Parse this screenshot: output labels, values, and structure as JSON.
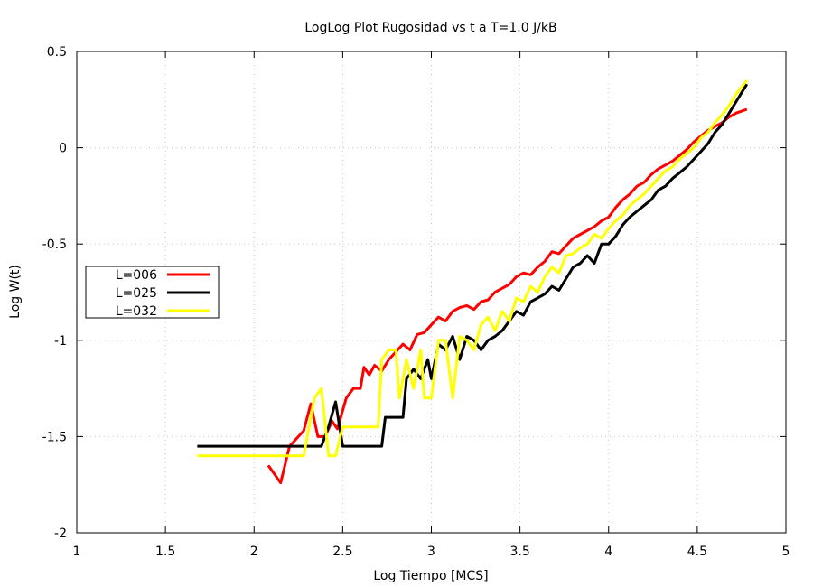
{
  "chart_data": {
    "type": "line",
    "title": "LogLog Plot Rugosidad vs t a T=1.0 J/kB",
    "xlabel": "Log Tiempo [MCS]",
    "ylabel": "Log W(t)",
    "xlim": [
      1,
      5
    ],
    "ylim": [
      -2,
      0.5
    ],
    "x_ticks": [
      1,
      1.5,
      2,
      2.5,
      3,
      3.5,
      4,
      4.5,
      5
    ],
    "x_tick_labels": [
      "1",
      "1.5",
      "2",
      "2.5",
      "3",
      "3.5",
      "4",
      "4.5",
      "5"
    ],
    "y_ticks": [
      -2,
      -1.5,
      -1,
      -0.5,
      0,
      0.5
    ],
    "y_tick_labels": [
      "-2",
      "-1.5",
      "-1",
      "-0.5",
      "0",
      "0.5"
    ],
    "grid": true,
    "legend_position": "middle-left",
    "series": [
      {
        "name": "L=006",
        "color": "#ff0000",
        "points": [
          [
            2.08,
            -1.65
          ],
          [
            2.15,
            -1.74
          ],
          [
            2.2,
            -1.55
          ],
          [
            2.28,
            -1.47
          ],
          [
            2.32,
            -1.33
          ],
          [
            2.36,
            -1.5
          ],
          [
            2.4,
            -1.5
          ],
          [
            2.44,
            -1.42
          ],
          [
            2.47,
            -1.46
          ],
          [
            2.52,
            -1.3
          ],
          [
            2.56,
            -1.25
          ],
          [
            2.6,
            -1.25
          ],
          [
            2.62,
            -1.14
          ],
          [
            2.65,
            -1.18
          ],
          [
            2.68,
            -1.13
          ],
          [
            2.72,
            -1.16
          ],
          [
            2.76,
            -1.1
          ],
          [
            2.8,
            -1.06
          ],
          [
            2.84,
            -1.02
          ],
          [
            2.88,
            -1.05
          ],
          [
            2.92,
            -0.97
          ],
          [
            2.96,
            -0.96
          ],
          [
            3.0,
            -0.92
          ],
          [
            3.04,
            -0.88
          ],
          [
            3.08,
            -0.9
          ],
          [
            3.12,
            -0.85
          ],
          [
            3.16,
            -0.83
          ],
          [
            3.2,
            -0.82
          ],
          [
            3.24,
            -0.84
          ],
          [
            3.28,
            -0.8
          ],
          [
            3.32,
            -0.79
          ],
          [
            3.36,
            -0.75
          ],
          [
            3.4,
            -0.73
          ],
          [
            3.44,
            -0.71
          ],
          [
            3.48,
            -0.67
          ],
          [
            3.52,
            -0.65
          ],
          [
            3.56,
            -0.66
          ],
          [
            3.6,
            -0.62
          ],
          [
            3.64,
            -0.59
          ],
          [
            3.68,
            -0.54
          ],
          [
            3.72,
            -0.55
          ],
          [
            3.76,
            -0.51
          ],
          [
            3.8,
            -0.47
          ],
          [
            3.84,
            -0.45
          ],
          [
            3.88,
            -0.43
          ],
          [
            3.92,
            -0.41
          ],
          [
            3.96,
            -0.38
          ],
          [
            4.0,
            -0.36
          ],
          [
            4.04,
            -0.31
          ],
          [
            4.08,
            -0.27
          ],
          [
            4.12,
            -0.24
          ],
          [
            4.16,
            -0.2
          ],
          [
            4.2,
            -0.18
          ],
          [
            4.24,
            -0.14
          ],
          [
            4.28,
            -0.11
          ],
          [
            4.32,
            -0.09
          ],
          [
            4.36,
            -0.07
          ],
          [
            4.4,
            -0.04
          ],
          [
            4.44,
            -0.01
          ],
          [
            4.48,
            0.03
          ],
          [
            4.52,
            0.06
          ],
          [
            4.56,
            0.09
          ],
          [
            4.6,
            0.11
          ],
          [
            4.64,
            0.13
          ],
          [
            4.68,
            0.16
          ],
          [
            4.72,
            0.18
          ],
          [
            4.78,
            0.2
          ]
        ]
      },
      {
        "name": "L=025",
        "color": "#000000",
        "points": [
          [
            1.68,
            -1.55
          ],
          [
            2.3,
            -1.55
          ],
          [
            2.34,
            -1.55
          ],
          [
            2.38,
            -1.55
          ],
          [
            2.42,
            -1.45
          ],
          [
            2.46,
            -1.32
          ],
          [
            2.5,
            -1.55
          ],
          [
            2.72,
            -1.55
          ],
          [
            2.74,
            -1.4
          ],
          [
            2.84,
            -1.4
          ],
          [
            2.86,
            -1.2
          ],
          [
            2.9,
            -1.15
          ],
          [
            2.94,
            -1.2
          ],
          [
            2.98,
            -1.1
          ],
          [
            3.0,
            -1.2
          ],
          [
            3.04,
            -1.02
          ],
          [
            3.08,
            -1.05
          ],
          [
            3.12,
            -0.98
          ],
          [
            3.16,
            -1.1
          ],
          [
            3.2,
            -0.98
          ],
          [
            3.24,
            -1.0
          ],
          [
            3.28,
            -1.05
          ],
          [
            3.32,
            -1.0
          ],
          [
            3.36,
            -0.98
          ],
          [
            3.4,
            -0.95
          ],
          [
            3.44,
            -0.9
          ],
          [
            3.48,
            -0.85
          ],
          [
            3.52,
            -0.87
          ],
          [
            3.56,
            -0.8
          ],
          [
            3.6,
            -0.78
          ],
          [
            3.64,
            -0.76
          ],
          [
            3.68,
            -0.72
          ],
          [
            3.72,
            -0.74
          ],
          [
            3.76,
            -0.68
          ],
          [
            3.8,
            -0.62
          ],
          [
            3.84,
            -0.6
          ],
          [
            3.88,
            -0.56
          ],
          [
            3.92,
            -0.6
          ],
          [
            3.96,
            -0.5
          ],
          [
            4.0,
            -0.5
          ],
          [
            4.04,
            -0.46
          ],
          [
            4.08,
            -0.4
          ],
          [
            4.12,
            -0.36
          ],
          [
            4.16,
            -0.33
          ],
          [
            4.2,
            -0.3
          ],
          [
            4.24,
            -0.27
          ],
          [
            4.28,
            -0.22
          ],
          [
            4.32,
            -0.2
          ],
          [
            4.36,
            -0.16
          ],
          [
            4.4,
            -0.13
          ],
          [
            4.44,
            -0.1
          ],
          [
            4.48,
            -0.06
          ],
          [
            4.52,
            -0.02
          ],
          [
            4.56,
            0.02
          ],
          [
            4.6,
            0.08
          ],
          [
            4.64,
            0.12
          ],
          [
            4.68,
            0.18
          ],
          [
            4.72,
            0.24
          ],
          [
            4.78,
            0.33
          ]
        ]
      },
      {
        "name": "L=032",
        "color": "#ffff00",
        "points": [
          [
            1.68,
            -1.6
          ],
          [
            2.28,
            -1.6
          ],
          [
            2.34,
            -1.3
          ],
          [
            2.38,
            -1.25
          ],
          [
            2.42,
            -1.6
          ],
          [
            2.46,
            -1.6
          ],
          [
            2.5,
            -1.45
          ],
          [
            2.7,
            -1.45
          ],
          [
            2.72,
            -1.1
          ],
          [
            2.76,
            -1.05
          ],
          [
            2.8,
            -1.05
          ],
          [
            2.82,
            -1.3
          ],
          [
            2.86,
            -1.1
          ],
          [
            2.9,
            -1.25
          ],
          [
            2.94,
            -1.05
          ],
          [
            2.96,
            -1.3
          ],
          [
            3.0,
            -1.3
          ],
          [
            3.04,
            -1.0
          ],
          [
            3.08,
            -1.0
          ],
          [
            3.12,
            -1.3
          ],
          [
            3.16,
            -0.98
          ],
          [
            3.2,
            -1.0
          ],
          [
            3.24,
            -1.05
          ],
          [
            3.28,
            -0.92
          ],
          [
            3.32,
            -0.88
          ],
          [
            3.36,
            -0.95
          ],
          [
            3.4,
            -0.85
          ],
          [
            3.44,
            -0.9
          ],
          [
            3.48,
            -0.78
          ],
          [
            3.52,
            -0.8
          ],
          [
            3.56,
            -0.72
          ],
          [
            3.6,
            -0.75
          ],
          [
            3.64,
            -0.67
          ],
          [
            3.68,
            -0.62
          ],
          [
            3.72,
            -0.65
          ],
          [
            3.76,
            -0.56
          ],
          [
            3.8,
            -0.55
          ],
          [
            3.84,
            -0.52
          ],
          [
            3.88,
            -0.5
          ],
          [
            3.92,
            -0.45
          ],
          [
            3.96,
            -0.47
          ],
          [
            4.0,
            -0.42
          ],
          [
            4.04,
            -0.38
          ],
          [
            4.08,
            -0.35
          ],
          [
            4.12,
            -0.3
          ],
          [
            4.16,
            -0.27
          ],
          [
            4.2,
            -0.24
          ],
          [
            4.24,
            -0.2
          ],
          [
            4.28,
            -0.16
          ],
          [
            4.32,
            -0.12
          ],
          [
            4.36,
            -0.1
          ],
          [
            4.4,
            -0.06
          ],
          [
            4.44,
            -0.03
          ],
          [
            4.48,
            0.0
          ],
          [
            4.52,
            0.05
          ],
          [
            4.56,
            0.08
          ],
          [
            4.6,
            0.13
          ],
          [
            4.64,
            0.17
          ],
          [
            4.68,
            0.22
          ],
          [
            4.72,
            0.28
          ],
          [
            4.78,
            0.35
          ]
        ]
      }
    ]
  }
}
